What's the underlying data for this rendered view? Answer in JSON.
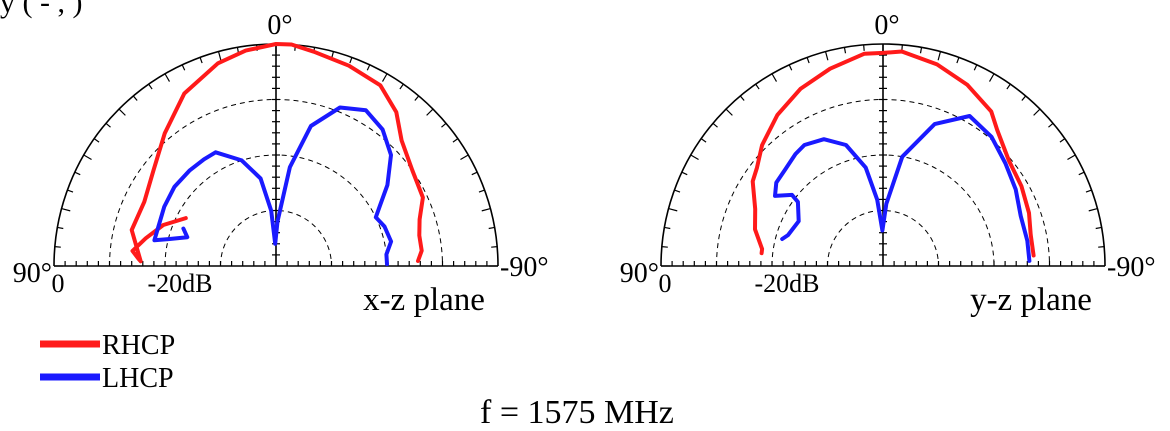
{
  "header_partial": "y  (   -       ,          )",
  "frequency_label": "f = 1575 MHz",
  "legend": [
    {
      "name": "RHCP",
      "color": "#ff1a1a"
    },
    {
      "name": "LHCP",
      "color": "#1a1aff"
    }
  ],
  "chart_data": [
    {
      "type": "polar",
      "plane_label": "x-z plane",
      "angle_labels": {
        "top": "0°",
        "left": "90°",
        "right": "-90°"
      },
      "radial_labels": {
        "center": "0",
        "ring": "-20dB"
      },
      "angle_range_deg": [
        90,
        -90
      ],
      "grid": true,
      "series": [
        {
          "name": "RHCP",
          "color": "#ff1a1a",
          "points": [
            [
              62,
              0.46
            ],
            [
              70,
              0.54
            ],
            [
              78,
              0.6
            ],
            [
              84,
              0.65
            ],
            [
              87,
              0.62
            ],
            [
              88,
              0.61
            ],
            [
              76,
              0.67
            ],
            [
              64,
              0.66
            ],
            [
              52,
              0.7
            ],
            [
              40,
              0.78
            ],
            [
              28,
              0.88
            ],
            [
              16,
              0.95
            ],
            [
              8,
              0.98
            ],
            [
              0,
              1.0
            ],
            [
              -4,
              1.0
            ],
            [
              -10,
              0.98
            ],
            [
              -20,
              0.96
            ],
            [
              -30,
              0.94
            ],
            [
              -38,
              0.88
            ],
            [
              -45,
              0.8
            ],
            [
              -55,
              0.75
            ],
            [
              -65,
              0.73
            ],
            [
              -72,
              0.68
            ],
            [
              -78,
              0.66
            ],
            [
              -84,
              0.66
            ],
            [
              -88,
              0.64
            ]
          ]
        },
        {
          "name": "LHCP",
          "color": "#1a1aff",
          "points": [
            [
              68,
              0.45
            ],
            [
              72,
              0.42
            ],
            [
              76,
              0.5
            ],
            [
              78,
              0.56
            ],
            [
              62,
              0.57
            ],
            [
              52,
              0.58
            ],
            [
              42,
              0.58
            ],
            [
              34,
              0.58
            ],
            [
              28,
              0.58
            ],
            [
              18,
              0.5
            ],
            [
              10,
              0.4
            ],
            [
              5,
              0.25
            ],
            [
              2,
              0.1
            ],
            [
              -2,
              0.2
            ],
            [
              -8,
              0.45
            ],
            [
              -14,
              0.65
            ],
            [
              -22,
              0.77
            ],
            [
              -30,
              0.81
            ],
            [
              -38,
              0.78
            ],
            [
              -46,
              0.72
            ],
            [
              -54,
              0.62
            ],
            [
              -60,
              0.54
            ],
            [
              -64,
              0.5
            ],
            [
              -70,
              0.52
            ],
            [
              -78,
              0.53
            ],
            [
              -84,
              0.5
            ],
            [
              -89,
              0.5
            ]
          ]
        }
      ]
    },
    {
      "type": "polar",
      "plane_label": "y-z plane",
      "angle_labels": {
        "top": "0°",
        "left": "90°",
        "right": "-90°"
      },
      "radial_labels": {
        "center": "0",
        "ring": "-20dB"
      },
      "angle_range_deg": [
        90,
        -90
      ],
      "grid": true,
      "series": [
        {
          "name": "RHCP",
          "color": "#ff1a1a",
          "points": [
            [
              82,
              0.55
            ],
            [
              84,
              0.55
            ],
            [
              82,
              0.55
            ],
            [
              74,
              0.6
            ],
            [
              66,
              0.63
            ],
            [
              57,
              0.7
            ],
            [
              52,
              0.72
            ],
            [
              45,
              0.77
            ],
            [
              35,
              0.83
            ],
            [
              25,
              0.88
            ],
            [
              15,
              0.92
            ],
            [
              5,
              0.96
            ],
            [
              0,
              0.96
            ],
            [
              -5,
              0.97
            ],
            [
              -15,
              0.94
            ],
            [
              -25,
              0.9
            ],
            [
              -35,
              0.85
            ],
            [
              -40,
              0.8
            ],
            [
              -50,
              0.74
            ],
            [
              -60,
              0.72
            ],
            [
              -70,
              0.7
            ],
            [
              -78,
              0.68
            ],
            [
              -86,
              0.68
            ]
          ]
        },
        {
          "name": "LHCP",
          "color": "#1a1aff",
          "points": [
            [
              75,
              0.47
            ],
            [
              72,
              0.45
            ],
            [
              62,
              0.43
            ],
            [
              53,
              0.48
            ],
            [
              52,
              0.52
            ],
            [
              57,
              0.58
            ],
            [
              52,
              0.61
            ],
            [
              45,
              0.62
            ],
            [
              38,
              0.64
            ],
            [
              33,
              0.65
            ],
            [
              25,
              0.63
            ],
            [
              17,
              0.57
            ],
            [
              10,
              0.45
            ],
            [
              5,
              0.3
            ],
            [
              1,
              0.16
            ],
            [
              -3,
              0.28
            ],
            [
              -10,
              0.5
            ],
            [
              -20,
              0.68
            ],
            [
              -30,
              0.78
            ],
            [
              -40,
              0.76
            ],
            [
              -50,
              0.72
            ],
            [
              -60,
              0.69
            ],
            [
              -70,
              0.66
            ],
            [
              -80,
              0.66
            ],
            [
              -88,
              0.66
            ]
          ]
        }
      ]
    }
  ]
}
